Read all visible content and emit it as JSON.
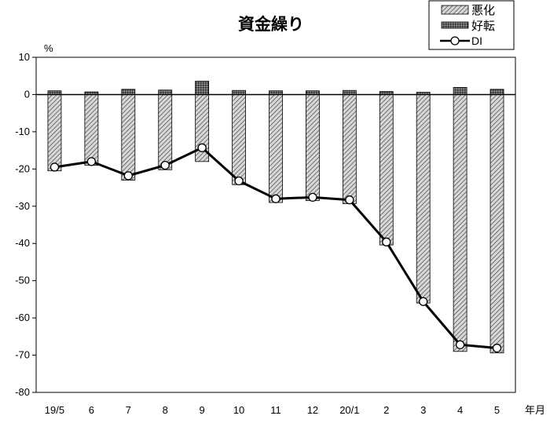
{
  "chart_data": {
    "type": "bar",
    "title": "資金繰り",
    "ylabel": "%",
    "xlabel": "年月",
    "ylim": [
      -80,
      10
    ],
    "yticks": [
      10,
      0,
      -10,
      -20,
      -30,
      -40,
      -50,
      -60,
      -70,
      -80
    ],
    "categories": [
      "19/5",
      "6",
      "7",
      "8",
      "9",
      "10",
      "11",
      "12",
      "20/1",
      "2",
      "3",
      "4",
      "5"
    ],
    "series": [
      {
        "name": "悪化",
        "type": "bar",
        "pattern": "hatch",
        "values": [
          -20.5,
          -19.0,
          -23.0,
          -20.2,
          -18.0,
          -24.2,
          -29.0,
          -28.5,
          -29.3,
          -40.4,
          -56.0,
          -69.0,
          -69.4
        ]
      },
      {
        "name": "好転",
        "type": "bar",
        "pattern": "dense",
        "values": [
          1.0,
          0.7,
          1.4,
          1.2,
          3.6,
          1.1,
          1.0,
          1.0,
          1.1,
          0.8,
          0.6,
          1.9,
          1.4
        ]
      },
      {
        "name": "DI",
        "type": "line",
        "values": [
          -19.5,
          -18.0,
          -21.8,
          -19.0,
          -14.3,
          -23.2,
          -28.0,
          -27.6,
          -28.3,
          -39.6,
          -55.6,
          -67.2,
          -68.1
        ]
      }
    ],
    "legend_position": "top-right",
    "grid": false
  }
}
